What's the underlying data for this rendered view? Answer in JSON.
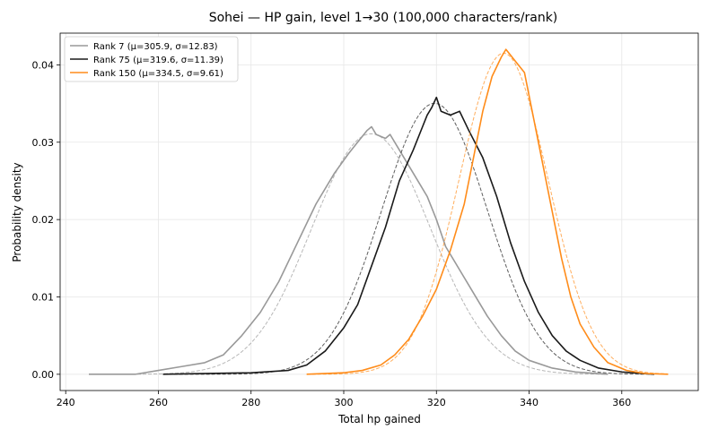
{
  "chart_data": {
    "type": "line",
    "title": "Sohei — HP gain, level 1→30 (100,000 characters/rank)",
    "xlabel": "Total hp gained",
    "ylabel": "Probability density",
    "xlim": [
      238.8,
      376.5
    ],
    "ylim": [
      -0.0021,
      0.0441
    ],
    "xticks": [
      240,
      260,
      280,
      300,
      320,
      340,
      360
    ],
    "yticks": [
      0.0,
      0.01,
      0.02,
      0.03,
      0.04
    ],
    "ytick_labels": [
      "0.00",
      "0.01",
      "0.02",
      "0.03",
      "0.04"
    ],
    "grid": true,
    "legend_position": "top-left",
    "series": [
      {
        "name": "Rank 7 (μ=305.9, σ=12.83)",
        "color": "#999999",
        "mu": 305.9,
        "sigma": 12.83,
        "x_range": [
          245,
          357
        ],
        "points": [
          [
            245,
            0.0
          ],
          [
            255,
            0.0
          ],
          [
            260,
            0.0005
          ],
          [
            265,
            0.001
          ],
          [
            270,
            0.0015
          ],
          [
            274,
            0.0025
          ],
          [
            278,
            0.005
          ],
          [
            282,
            0.008
          ],
          [
            286,
            0.012
          ],
          [
            290,
            0.017
          ],
          [
            294,
            0.022
          ],
          [
            298,
            0.026
          ],
          [
            301,
            0.0285
          ],
          [
            303,
            0.03
          ],
          [
            305,
            0.0315
          ],
          [
            306,
            0.032
          ],
          [
            307,
            0.031
          ],
          [
            309,
            0.0305
          ],
          [
            310,
            0.031
          ],
          [
            312,
            0.029
          ],
          [
            314,
            0.027
          ],
          [
            316,
            0.025
          ],
          [
            318,
            0.023
          ],
          [
            320,
            0.02
          ],
          [
            322,
            0.0165
          ],
          [
            325,
            0.0135
          ],
          [
            328,
            0.0105
          ],
          [
            331,
            0.0075
          ],
          [
            334,
            0.005
          ],
          [
            337,
            0.003
          ],
          [
            340,
            0.0018
          ],
          [
            345,
            0.0008
          ],
          [
            350,
            0.0003
          ],
          [
            357,
            0.0
          ]
        ]
      },
      {
        "name": "Rank 75 (μ=319.6, σ=11.39)",
        "color": "#1a1a1a",
        "mu": 319.6,
        "sigma": 11.39,
        "x_range": [
          261,
          367
        ],
        "points": [
          [
            261,
            0.0
          ],
          [
            280,
            0.0002
          ],
          [
            288,
            0.0005
          ],
          [
            292,
            0.0012
          ],
          [
            296,
            0.003
          ],
          [
            300,
            0.006
          ],
          [
            303,
            0.009
          ],
          [
            306,
            0.014
          ],
          [
            309,
            0.019
          ],
          [
            312,
            0.025
          ],
          [
            315,
            0.029
          ],
          [
            317,
            0.032
          ],
          [
            318,
            0.0335
          ],
          [
            319,
            0.0345
          ],
          [
            320,
            0.0358
          ],
          [
            321,
            0.034
          ],
          [
            323,
            0.0335
          ],
          [
            325,
            0.034
          ],
          [
            327,
            0.0315
          ],
          [
            330,
            0.028
          ],
          [
            333,
            0.023
          ],
          [
            336,
            0.017
          ],
          [
            339,
            0.012
          ],
          [
            342,
            0.008
          ],
          [
            345,
            0.005
          ],
          [
            348,
            0.003
          ],
          [
            351,
            0.0018
          ],
          [
            355,
            0.0008
          ],
          [
            360,
            0.0003
          ],
          [
            367,
            0.0
          ]
        ]
      },
      {
        "name": "Rank 150 (μ=334.5, σ=9.61)",
        "color": "#ff8c1a",
        "mu": 334.5,
        "sigma": 9.61,
        "x_range": [
          292,
          370
        ],
        "points": [
          [
            292,
            0.0
          ],
          [
            300,
            0.0002
          ],
          [
            304,
            0.0005
          ],
          [
            308,
            0.0012
          ],
          [
            311,
            0.0025
          ],
          [
            314,
            0.0045
          ],
          [
            317,
            0.0075
          ],
          [
            320,
            0.011
          ],
          [
            323,
            0.016
          ],
          [
            326,
            0.022
          ],
          [
            328,
            0.028
          ],
          [
            330,
            0.034
          ],
          [
            332,
            0.0385
          ],
          [
            334,
            0.041
          ],
          [
            335,
            0.042
          ],
          [
            337,
            0.0405
          ],
          [
            339,
            0.039
          ],
          [
            341,
            0.033
          ],
          [
            343,
            0.027
          ],
          [
            345,
            0.021
          ],
          [
            347,
            0.015
          ],
          [
            349,
            0.01
          ],
          [
            351,
            0.0065
          ],
          [
            354,
            0.0035
          ],
          [
            357,
            0.0015
          ],
          [
            361,
            0.0005
          ],
          [
            365,
            0.0001
          ],
          [
            370,
            0.0
          ]
        ]
      }
    ]
  }
}
